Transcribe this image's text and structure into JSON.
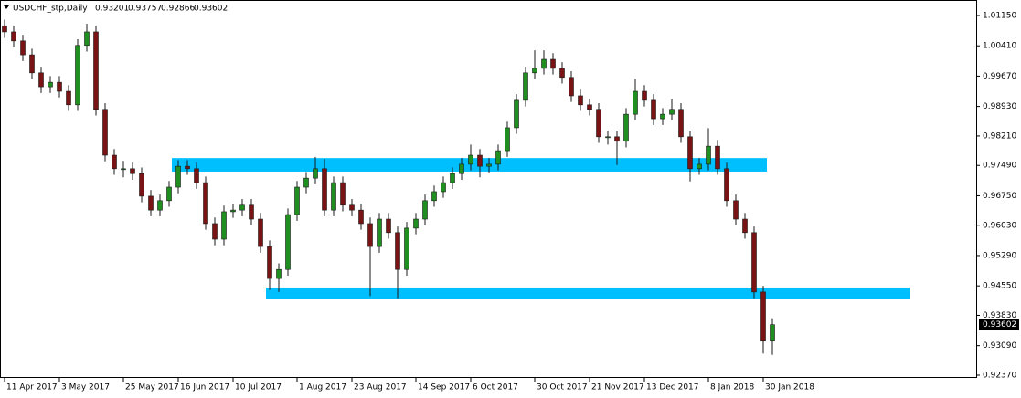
{
  "chart_data": {
    "type": "candlestick",
    "title": "USDCHF_stp,Daily",
    "categories": [
      "11 Apr 2017",
      null,
      null,
      null,
      null,
      null,
      "3 May 2017",
      null,
      null,
      null,
      null,
      null,
      null,
      "25 May 2017",
      null,
      null,
      null,
      null,
      null,
      "16 Jun 2017",
      null,
      null,
      null,
      null,
      null,
      "10 Jul 2017",
      null,
      null,
      null,
      null,
      null,
      null,
      "1 Aug 2017",
      null,
      null,
      null,
      null,
      null,
      "23 Aug 2017",
      null,
      null,
      null,
      null,
      null,
      null,
      "14 Sep 2017",
      null,
      null,
      null,
      null,
      null,
      "6 Oct 2017",
      null,
      null,
      null,
      null,
      null,
      null,
      "30 Oct 2017",
      null,
      null,
      null,
      null,
      null,
      "21 Nov 2017",
      null,
      null,
      null,
      null,
      null,
      "13 Dec 2017",
      null,
      null,
      null,
      null,
      null,
      null,
      "8 Jan 2018",
      null,
      null,
      null,
      null,
      null,
      "30 Jan 2018",
      null
    ],
    "open": [
      1.009,
      1.0075,
      1.0053,
      1.0019,
      0.9975,
      0.9941,
      0.9952,
      0.993,
      0.9897,
      1.0042,
      1.0075,
      0.9886,
      0.9774,
      0.9741,
      0.9741,
      0.9729,
      0.9674,
      0.964,
      0.9663,
      0.9696,
      0.9747,
      0.9741,
      0.9707,
      0.9607,
      0.9569,
      0.9636,
      0.964,
      0.9652,
      0.9618,
      0.9551,
      0.9473,
      0.9495,
      0.9629,
      0.9696,
      0.9718,
      0.9741,
      0.964,
      0.9707,
      0.9652,
      0.964,
      0.9607,
      0.9551,
      0.9618,
      0.9585,
      0.9495,
      0.9596,
      0.9618,
      0.9663,
      0.9685,
      0.9707,
      0.9729,
      0.9752,
      0.9774,
      0.9747,
      0.9752,
      0.9785,
      0.9841,
      0.9908,
      0.9975,
      0.9986,
      1.0008,
      0.9986,
      0.9964,
      0.9919,
      0.9897,
      0.9886,
      0.9819,
      0.9819,
      0.9808,
      0.9874,
      0.993,
      0.9908,
      0.9863,
      0.9874,
      0.9886,
      0.9819,
      0.9741,
      0.9752,
      0.9796,
      0.9741,
      0.9663,
      0.9618,
      0.9585,
      0.944,
      0.93201
    ],
    "high": [
      1.0105,
      1.009,
      1.0068,
      1.0034,
      0.999,
      0.9967,
      0.9967,
      0.9945,
      1.0057,
      1.0095,
      1.009,
      0.9901,
      0.9789,
      0.976,
      0.9756,
      0.9744,
      0.9689,
      0.9678,
      0.9711,
      0.9762,
      0.9762,
      0.9756,
      0.9722,
      0.9622,
      0.9651,
      0.9655,
      0.9667,
      0.9667,
      0.9633,
      0.9566,
      0.951,
      0.9644,
      0.9711,
      0.9733,
      0.977,
      0.9765,
      0.9722,
      0.9722,
      0.9667,
      0.9655,
      0.9622,
      0.9633,
      0.9633,
      0.96,
      0.9611,
      0.9633,
      0.9678,
      0.97,
      0.9722,
      0.9744,
      0.9767,
      0.98,
      0.9789,
      0.9767,
      0.98,
      0.9856,
      0.9923,
      0.999,
      1.003,
      1.003,
      1.0023,
      1.0001,
      0.9979,
      0.9934,
      0.9912,
      0.9901,
      0.9834,
      0.9834,
      0.9889,
      0.996,
      0.9945,
      0.9923,
      0.9889,
      0.991,
      0.9901,
      0.9834,
      0.9767,
      0.984,
      0.9811,
      0.9756,
      0.9678,
      0.9633,
      0.96,
      0.9455,
      0.93757
    ],
    "low": [
      1.006,
      1.0038,
      1.0004,
      0.996,
      0.9926,
      0.9926,
      0.9915,
      0.9882,
      0.9882,
      1.0027,
      0.9871,
      0.9759,
      0.9726,
      0.972,
      0.9714,
      0.9659,
      0.9625,
      0.9625,
      0.9648,
      0.9681,
      0.9726,
      0.9692,
      0.9592,
      0.9554,
      0.9554,
      0.9621,
      0.9625,
      0.9603,
      0.9536,
      0.9445,
      0.944,
      0.948,
      0.9614,
      0.9681,
      0.9703,
      0.9625,
      0.9625,
      0.9637,
      0.9625,
      0.9592,
      0.943,
      0.9536,
      0.957,
      0.9425,
      0.948,
      0.9581,
      0.9603,
      0.9648,
      0.967,
      0.9692,
      0.9714,
      0.9737,
      0.972,
      0.9732,
      0.9737,
      0.977,
      0.9826,
      0.9893,
      0.996,
      0.9971,
      0.9971,
      0.9949,
      0.9904,
      0.9882,
      0.9871,
      0.9804,
      0.98,
      0.975,
      0.9793,
      0.9859,
      0.9893,
      0.9848,
      0.9848,
      0.9859,
      0.9804,
      0.971,
      0.9726,
      0.9737,
      0.9726,
      0.9648,
      0.9603,
      0.957,
      0.9425,
      0.929,
      0.92866
    ],
    "close": [
      1.0075,
      1.0053,
      1.0019,
      0.9975,
      0.9941,
      0.9952,
      0.993,
      0.9897,
      1.0042,
      1.0075,
      0.9886,
      0.9774,
      0.9741,
      0.9741,
      0.9729,
      0.9674,
      0.964,
      0.9663,
      0.9696,
      0.9747,
      0.9741,
      0.9707,
      0.9607,
      0.9569,
      0.9636,
      0.964,
      0.9652,
      0.9618,
      0.9551,
      0.9473,
      0.9495,
      0.9629,
      0.9696,
      0.9718,
      0.9741,
      0.964,
      0.9707,
      0.9652,
      0.964,
      0.9607,
      0.9551,
      0.9618,
      0.9585,
      0.9495,
      0.9596,
      0.9618,
      0.9663,
      0.9685,
      0.9707,
      0.9729,
      0.9752,
      0.9774,
      0.9747,
      0.9752,
      0.9785,
      0.9841,
      0.9908,
      0.9975,
      0.9986,
      1.0008,
      0.9986,
      0.9964,
      0.9919,
      0.9897,
      0.9886,
      0.9819,
      0.9819,
      0.9808,
      0.9874,
      0.993,
      0.9908,
      0.9863,
      0.9874,
      0.9886,
      0.9819,
      0.9741,
      0.9752,
      0.9796,
      0.9741,
      0.9663,
      0.9618,
      0.9585,
      0.944,
      0.932,
      0.93602
    ],
    "up_color": "#1f8f1f",
    "down_color": "#7a1414",
    "wick_color": "#1a1a1a",
    "zones": [
      {
        "top": 0.9767,
        "bottom": 0.9734,
        "start": 18.3,
        "end": 83.4,
        "color": "#00bfff"
      },
      {
        "top": 0.9451,
        "bottom": 0.9422,
        "start": 28.6,
        "end": 99.1,
        "color": "#00bfff"
      }
    ],
    "ylim": [
      0.92325,
      1.01529
    ],
    "yticks": [
      {
        "value": 1.0115,
        "label": "1.01150"
      },
      {
        "value": 1.0041,
        "label": "1.00410"
      },
      {
        "value": 0.9967,
        "label": "0.99670"
      },
      {
        "value": 0.9893,
        "label": "0.98930"
      },
      {
        "value": 0.9821,
        "label": "0.98210"
      },
      {
        "value": 0.9749,
        "label": "0.97490"
      },
      {
        "value": 0.9675,
        "label": "0.96750"
      },
      {
        "value": 0.9603,
        "label": "0.96030"
      },
      {
        "value": 0.9529,
        "label": "0.95290"
      },
      {
        "value": 0.9455,
        "label": "0.94550"
      },
      {
        "value": 0.9383,
        "label": "0.93830"
      },
      {
        "value": 0.9309,
        "label": "0.93090"
      },
      {
        "value": 0.9237,
        "label": "0.92370"
      }
    ],
    "grid": false
  }
}
